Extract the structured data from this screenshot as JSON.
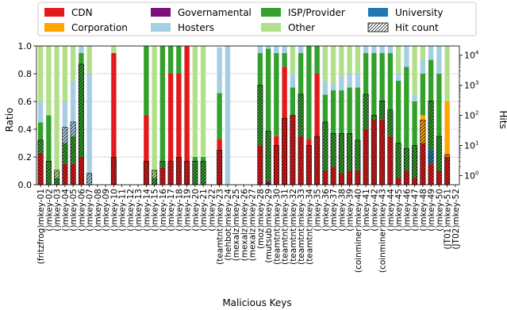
{
  "chart_data": {
    "type": "bar",
    "stacked": true,
    "xlabel": "Malicious Keys",
    "ylabel": "Ratio",
    "y2label": "Hits",
    "ylim": [
      0,
      1
    ],
    "yticks": [
      "0.0",
      "0.2",
      "0.4",
      "0.6",
      "0.8",
      "1.0"
    ],
    "y2scale": "log",
    "y2ticks": [
      {
        "base": "10",
        "exp": "0",
        "value": 1
      },
      {
        "base": "10",
        "exp": "1",
        "value": 10
      },
      {
        "base": "10",
        "exp": "2",
        "value": 100
      },
      {
        "base": "10",
        "exp": "3",
        "value": 1000
      },
      {
        "base": "10",
        "exp": "4",
        "value": 10000
      }
    ],
    "legend_position": "top",
    "legend": [
      {
        "label": "CDN",
        "color": "#e31a1c"
      },
      {
        "label": "Governamental",
        "color": "#7b0f7b"
      },
      {
        "label": "ISP/Provider",
        "color": "#33a02c"
      },
      {
        "label": "University",
        "color": "#1f78b4"
      },
      {
        "label": "Corporation",
        "color": "#ffa500"
      },
      {
        "label": "Hosters",
        "color": "#a6cee3"
      },
      {
        "label": "Other",
        "color": "#b2df8a"
      },
      {
        "label": "Hit count",
        "hatch": true
      }
    ],
    "stack_order": [
      "CDN",
      "Governamental",
      "Corporation",
      "University",
      "ISP/Provider",
      "Hosters",
      "Other"
    ],
    "categories": [
      "(fritzfrog)mkey-01",
      "()mkey-02",
      "()mkey-03",
      "()mkey-04",
      "()mkey-05",
      "()mkey-06",
      "()mkey-07",
      "()mkey-08",
      "()mkey-09",
      "()mkey-10",
      "()mkey-11",
      "()mkey-12",
      "()mkey-13",
      "()mkey-14",
      "()mkey-15",
      "()mkey-16",
      "()mkey-17",
      "()mkey-18",
      "()mkey-19",
      "()mkey-20",
      "()mkey-21",
      "()mkey-22",
      "(teamtnt)mkey-23",
      "(hehbot)mkey-24",
      "(mexalz)mkey-25",
      "(mexalz)mkey-26",
      "(mexalz)mkey-27",
      "(moz)mkey-28",
      "(mutsub)mkey-29",
      "(teamtnt)mkey-30",
      "(teamtnt)mkey-31",
      "(teamtnt)mkey-32",
      "(teamtnt)mkey-33",
      "(teamtnt)mkey-34",
      "()mkey-35",
      "()mkey-36",
      "()mkey-37",
      "()mkey-38",
      "()mkey-39",
      "(coinminer)mkey-40",
      "()mkey-41",
      "()mkey-42",
      "(coinminer)mkey-43",
      "()mkey-44",
      "()mkey-45",
      "()mkey-46",
      "()mkey-47",
      "()mkey-48",
      "()mkey-49",
      "()mkey-50",
      "(JT01)mkey-51",
      "(JT02)mkey-52"
    ],
    "series": [
      {
        "name": "CDN",
        "values": [
          0.23,
          0,
          0,
          0.15,
          0.15,
          0.2,
          0,
          0,
          0,
          0.95,
          0,
          0,
          0,
          0.5,
          0,
          0.12,
          0.8,
          0.8,
          1.0,
          0,
          0,
          0,
          0.33,
          0,
          0,
          0,
          0,
          0.28,
          0,
          0.35,
          0.85,
          0.5,
          0.35,
          0.33,
          0.8,
          0.1,
          0.13,
          0.08,
          0.1,
          0.1,
          0.4,
          0.47,
          0.47,
          0.35,
          0.05,
          0.1,
          0.05,
          0.3,
          0.15,
          0.1,
          0.2,
          0
        ]
      },
      {
        "name": "Governamental",
        "values": [
          0,
          0,
          0,
          0,
          0,
          0,
          0,
          0,
          0,
          0,
          0,
          0,
          0,
          0,
          0,
          0,
          0,
          0,
          0,
          0,
          0,
          0,
          0,
          0,
          0,
          0,
          0,
          0,
          0.02,
          0,
          0,
          0,
          0,
          0,
          0,
          0,
          0,
          0,
          0,
          0,
          0,
          0,
          0,
          0,
          0,
          0,
          0,
          0,
          0,
          0,
          0,
          0
        ]
      },
      {
        "name": "Corporation",
        "values": [
          0,
          0,
          0,
          0,
          0,
          0,
          0,
          0,
          0,
          0,
          0,
          0,
          0,
          0,
          0,
          0,
          0,
          0,
          0,
          0,
          0,
          0,
          0,
          0,
          0,
          0,
          0,
          0,
          0,
          0,
          0,
          0,
          0,
          0,
          0,
          0,
          0,
          0,
          0,
          0,
          0,
          0,
          0,
          0,
          0,
          0,
          0,
          0.2,
          0,
          0,
          0.4,
          0
        ]
      },
      {
        "name": "University",
        "values": [
          0,
          0,
          0,
          0,
          0,
          0,
          0,
          0,
          0,
          0,
          0,
          0,
          0,
          0,
          0,
          0,
          0,
          0,
          0,
          0,
          0,
          0,
          0,
          0,
          0,
          0,
          0,
          0,
          0,
          0,
          0,
          0,
          0,
          0,
          0,
          0,
          0,
          0,
          0,
          0,
          0,
          0,
          0,
          0,
          0,
          0,
          0,
          0,
          0.1,
          0,
          0,
          0
        ]
      },
      {
        "name": "ISP/Provider",
        "values": [
          0.22,
          0.5,
          0.05,
          0.15,
          0.2,
          0.75,
          0,
          0,
          0,
          0,
          0,
          0,
          0,
          0.5,
          0.05,
          0.88,
          0.2,
          0.2,
          0,
          0.2,
          0.2,
          0,
          0.33,
          0,
          0,
          0,
          0,
          0.67,
          0.96,
          0.6,
          0.1,
          0.2,
          0.6,
          0.67,
          0.2,
          0.55,
          0.55,
          0.6,
          0.6,
          0.6,
          0.55,
          0.48,
          0.48,
          0.6,
          0.7,
          0.75,
          0.55,
          0.3,
          0.65,
          0.7,
          0,
          0
        ]
      },
      {
        "name": "Hosters",
        "values": [
          0.15,
          0,
          0,
          0.3,
          0.4,
          0.05,
          0.8,
          0,
          0,
          0,
          0,
          0,
          0,
          0,
          0,
          0,
          0,
          0,
          0,
          0,
          0,
          0,
          0.33,
          1.0,
          0,
          0,
          0,
          0.05,
          0.02,
          0.05,
          0.05,
          0.1,
          0.05,
          0,
          0,
          0.1,
          0.05,
          0.1,
          0.1,
          0.1,
          0.05,
          0.05,
          0.05,
          0.05,
          0.05,
          0.15,
          0.05,
          0.1,
          0.1,
          0.2,
          0,
          0
        ]
      },
      {
        "name": "Other",
        "values": [
          0.4,
          0.5,
          0.95,
          0.4,
          0.25,
          0,
          0.2,
          0,
          0,
          0.05,
          0,
          0,
          0,
          0,
          0.95,
          0,
          0,
          0,
          0,
          0.8,
          0.8,
          0,
          0,
          0,
          0,
          0,
          0,
          0,
          0,
          0,
          0,
          0.2,
          0,
          0,
          0,
          0.25,
          0.27,
          0.22,
          0.2,
          0.2,
          0,
          0,
          0,
          0,
          0.2,
          0,
          0.35,
          0.1,
          0,
          0,
          0.4,
          0
        ]
      }
    ],
    "hit_count": [
      15,
      3,
      1.5,
      40,
      60,
      5000,
      1.2,
      0,
      0,
      4,
      0,
      0,
      0,
      3,
      1.5,
      3,
      3,
      4,
      3,
      3,
      3,
      0,
      7,
      0,
      0,
      0,
      0,
      1000,
      30,
      10,
      80,
      100,
      500,
      10,
      20,
      60,
      25,
      25,
      25,
      15,
      500,
      100,
      300,
      150,
      12,
      8,
      10,
      70,
      300,
      20,
      5,
      0
    ]
  }
}
